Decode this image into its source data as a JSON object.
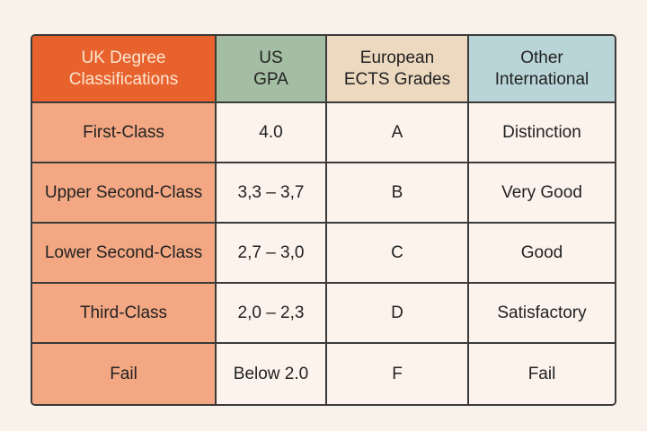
{
  "headers": [
    "UK Degree Classifications",
    "US GPA",
    "European ECTS Grades",
    "Other International"
  ],
  "header_lines": [
    [
      "UK Degree",
      "Classifications"
    ],
    [
      "US",
      "GPA"
    ],
    [
      "European",
      "ECTS Grades"
    ],
    [
      "Other",
      "International"
    ]
  ],
  "rows": [
    [
      "First-Class",
      "4.0",
      "A",
      "Distinction"
    ],
    [
      "Upper Second-Class",
      "3,3 – 3,7",
      "B",
      "Very Good"
    ],
    [
      "Lower Second-Class",
      "2,7 – 3,0",
      "C",
      "Good"
    ],
    [
      "Third-Class",
      "2,0 – 2,3",
      "D",
      "Satisfactory"
    ],
    [
      "Fail",
      "Below 2.0",
      "F",
      "Fail"
    ]
  ],
  "colors": {
    "uk_header": "#e8622e",
    "us_header": "#a4bea4",
    "ects_header": "#ecd9c0",
    "intl_header": "#b9d5d7",
    "uk_column": "#f3a883",
    "cell": "#fbf3ec",
    "background": "#f9f2ea"
  }
}
